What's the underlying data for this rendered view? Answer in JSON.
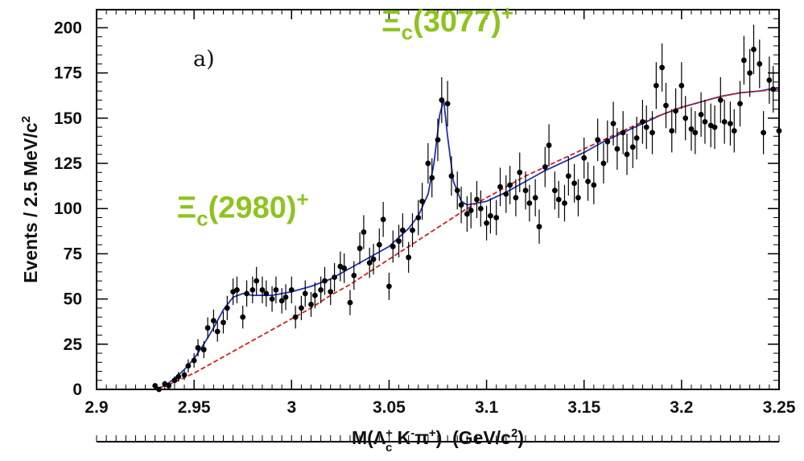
{
  "chart_data": {
    "type": "scatter",
    "panel_label": "a)",
    "xlabel": {
      "main": "M(Λ",
      "sup1": "+",
      "sub1": "c",
      "mid": " K",
      "sup2": "-",
      "mid2": "π",
      "sup3": "+",
      "end": ")  (GeV/c",
      "sup4": "2",
      "close": ")"
    },
    "ylabel": {
      "main": "Events / 2.5 MeV/c",
      "sup": "2"
    },
    "xlim": [
      2.9,
      3.25
    ],
    "ylim": [
      0,
      210
    ],
    "x_ticks": [
      "2.9",
      "2.95",
      "3",
      "3.05",
      "3.1",
      "3.15",
      "3.2",
      "3.25"
    ],
    "y_ticks": [
      "0",
      "25",
      "50",
      "75",
      "100",
      "125",
      "150",
      "175",
      "200"
    ],
    "annotations": [
      {
        "main": "Ξ",
        "sub": "c",
        "rest": "(3077)",
        "sup": "+",
        "x": 3.08,
        "y": 198
      },
      {
        "main": "Ξ",
        "sub": "c",
        "rest": "(2980)",
        "sup": "+",
        "x": 2.975,
        "y": 95
      }
    ],
    "series": [
      {
        "style": "points-with-error-bars",
        "color": "#000000",
        "points": [
          [
            2.93,
            2
          ],
          [
            2.932,
            0
          ],
          [
            2.935,
            3
          ],
          [
            2.937,
            2
          ],
          [
            2.94,
            5
          ],
          [
            2.942,
            7
          ],
          [
            2.945,
            8
          ],
          [
            2.947,
            13
          ],
          [
            2.95,
            16
          ],
          [
            2.952,
            23
          ],
          [
            2.955,
            22
          ],
          [
            2.957,
            34
          ],
          [
            2.96,
            38
          ],
          [
            2.962,
            32
          ],
          [
            2.965,
            37
          ],
          [
            2.967,
            45
          ],
          [
            2.97,
            54
          ],
          [
            2.972,
            55
          ],
          [
            2.975,
            40
          ],
          [
            2.977,
            53
          ],
          [
            2.98,
            55
          ],
          [
            2.982,
            60
          ],
          [
            2.985,
            55
          ],
          [
            2.987,
            53
          ],
          [
            2.99,
            50
          ],
          [
            2.992,
            55
          ],
          [
            2.995,
            49
          ],
          [
            2.997,
            51
          ],
          [
            3.0,
            55
          ],
          [
            3.002,
            40
          ],
          [
            3.005,
            45
          ],
          [
            3.007,
            53
          ],
          [
            3.01,
            47
          ],
          [
            3.012,
            52
          ],
          [
            3.015,
            55
          ],
          [
            3.017,
            60
          ],
          [
            3.02,
            54
          ],
          [
            3.022,
            62
          ],
          [
            3.025,
            68
          ],
          [
            3.027,
            67
          ],
          [
            3.03,
            48
          ],
          [
            3.032,
            63
          ],
          [
            3.035,
            78
          ],
          [
            3.037,
            87
          ],
          [
            3.04,
            70
          ],
          [
            3.042,
            72
          ],
          [
            3.045,
            80
          ],
          [
            3.047,
            94
          ],
          [
            3.05,
            57
          ],
          [
            3.052,
            79
          ],
          [
            3.055,
            82
          ],
          [
            3.057,
            88
          ],
          [
            3.06,
            73
          ],
          [
            3.062,
            88
          ],
          [
            3.065,
            95
          ],
          [
            3.067,
            104
          ],
          [
            3.07,
            125
          ],
          [
            3.072,
            117
          ],
          [
            3.075,
            138
          ],
          [
            3.077,
            160
          ],
          [
            3.08,
            158
          ],
          [
            3.082,
            118
          ],
          [
            3.085,
            110
          ],
          [
            3.087,
            102
          ],
          [
            3.09,
            97
          ],
          [
            3.092,
            99
          ],
          [
            3.095,
            105
          ],
          [
            3.097,
            100
          ],
          [
            3.1,
            92
          ],
          [
            3.102,
            96
          ],
          [
            3.105,
            95
          ],
          [
            3.107,
            112
          ],
          [
            3.11,
            108
          ],
          [
            3.112,
            113
          ],
          [
            3.115,
            106
          ],
          [
            3.117,
            120
          ],
          [
            3.12,
            110
          ],
          [
            3.122,
            103
          ],
          [
            3.125,
            106
          ],
          [
            3.127,
            90
          ],
          [
            3.13,
            123
          ],
          [
            3.132,
            135
          ],
          [
            3.135,
            110
          ],
          [
            3.137,
            105
          ],
          [
            3.14,
            103
          ],
          [
            3.142,
            118
          ],
          [
            3.145,
            114
          ],
          [
            3.147,
            106
          ],
          [
            3.15,
            128
          ],
          [
            3.152,
            115
          ],
          [
            3.155,
            113
          ],
          [
            3.157,
            138
          ],
          [
            3.16,
            125
          ],
          [
            3.162,
            137
          ],
          [
            3.165,
            147
          ],
          [
            3.167,
            133
          ],
          [
            3.17,
            142
          ],
          [
            3.172,
            130
          ],
          [
            3.175,
            134
          ],
          [
            3.177,
            139
          ],
          [
            3.18,
            148
          ],
          [
            3.182,
            145
          ],
          [
            3.185,
            142
          ],
          [
            3.187,
            168
          ],
          [
            3.19,
            178
          ],
          [
            3.192,
            157
          ],
          [
            3.195,
            143
          ],
          [
            3.197,
            154
          ],
          [
            3.2,
            168
          ],
          [
            3.202,
            150
          ],
          [
            3.205,
            144
          ],
          [
            3.207,
            142
          ],
          [
            3.21,
            152
          ],
          [
            3.212,
            148
          ],
          [
            3.215,
            146
          ],
          [
            3.217,
            145
          ],
          [
            3.22,
            160
          ],
          [
            3.222,
            148
          ],
          [
            3.225,
            147
          ],
          [
            3.227,
            143
          ],
          [
            3.23,
            158
          ],
          [
            3.232,
            182
          ],
          [
            3.235,
            175
          ],
          [
            3.237,
            188
          ],
          [
            3.24,
            180
          ],
          [
            3.242,
            142
          ],
          [
            3.245,
            171
          ],
          [
            3.247,
            166
          ],
          [
            3.25,
            143
          ]
        ]
      },
      {
        "style": "line",
        "color": "#1f2fb0",
        "points": [
          [
            2.9,
            0
          ],
          [
            2.93,
            0
          ],
          [
            2.935,
            2
          ],
          [
            2.94,
            6
          ],
          [
            2.945,
            11
          ],
          [
            2.95,
            17
          ],
          [
            2.955,
            25
          ],
          [
            2.96,
            34
          ],
          [
            2.965,
            44
          ],
          [
            2.97,
            51
          ],
          [
            2.975,
            53
          ],
          [
            2.98,
            52
          ],
          [
            2.99,
            52
          ],
          [
            3.0,
            54
          ],
          [
            3.01,
            57
          ],
          [
            3.02,
            61
          ],
          [
            3.03,
            67
          ],
          [
            3.04,
            73
          ],
          [
            3.05,
            79
          ],
          [
            3.06,
            89
          ],
          [
            3.065,
            96
          ],
          [
            3.07,
            108
          ],
          [
            3.073,
            125
          ],
          [
            3.076,
            152
          ],
          [
            3.078,
            160
          ],
          [
            3.08,
            140
          ],
          [
            3.083,
            115
          ],
          [
            3.087,
            104
          ],
          [
            3.09,
            102
          ],
          [
            3.1,
            104
          ],
          [
            3.11,
            109
          ],
          [
            3.12,
            115
          ],
          [
            3.13,
            121
          ],
          [
            3.14,
            126
          ],
          [
            3.15,
            131
          ],
          [
            3.16,
            137
          ],
          [
            3.17,
            142
          ],
          [
            3.18,
            147
          ],
          [
            3.19,
            152
          ],
          [
            3.2,
            156
          ],
          [
            3.21,
            159
          ],
          [
            3.22,
            162
          ],
          [
            3.23,
            164
          ],
          [
            3.24,
            165
          ],
          [
            3.25,
            167
          ]
        ]
      },
      {
        "style": "dashed-line",
        "color": "#cc2020",
        "points": [
          [
            2.9,
            0
          ],
          [
            2.93,
            0
          ],
          [
            2.94,
            4
          ],
          [
            2.95,
            9
          ],
          [
            2.96,
            15
          ],
          [
            2.97,
            21
          ],
          [
            2.98,
            27
          ],
          [
            2.99,
            33
          ],
          [
            3.0,
            39
          ],
          [
            3.01,
            45
          ],
          [
            3.02,
            52
          ],
          [
            3.03,
            58
          ],
          [
            3.04,
            65
          ],
          [
            3.05,
            72
          ],
          [
            3.06,
            79
          ],
          [
            3.07,
            86
          ],
          [
            3.08,
            93
          ],
          [
            3.09,
            100
          ],
          [
            3.1,
            106
          ],
          [
            3.11,
            112
          ],
          [
            3.12,
            118
          ],
          [
            3.13,
            123
          ],
          [
            3.14,
            128
          ],
          [
            3.15,
            133
          ],
          [
            3.16,
            138
          ],
          [
            3.17,
            143
          ],
          [
            3.18,
            148
          ],
          [
            3.19,
            152
          ],
          [
            3.2,
            156
          ],
          [
            3.21,
            159
          ],
          [
            3.22,
            162
          ],
          [
            3.23,
            164
          ],
          [
            3.24,
            165
          ],
          [
            3.25,
            166
          ]
        ]
      }
    ]
  }
}
